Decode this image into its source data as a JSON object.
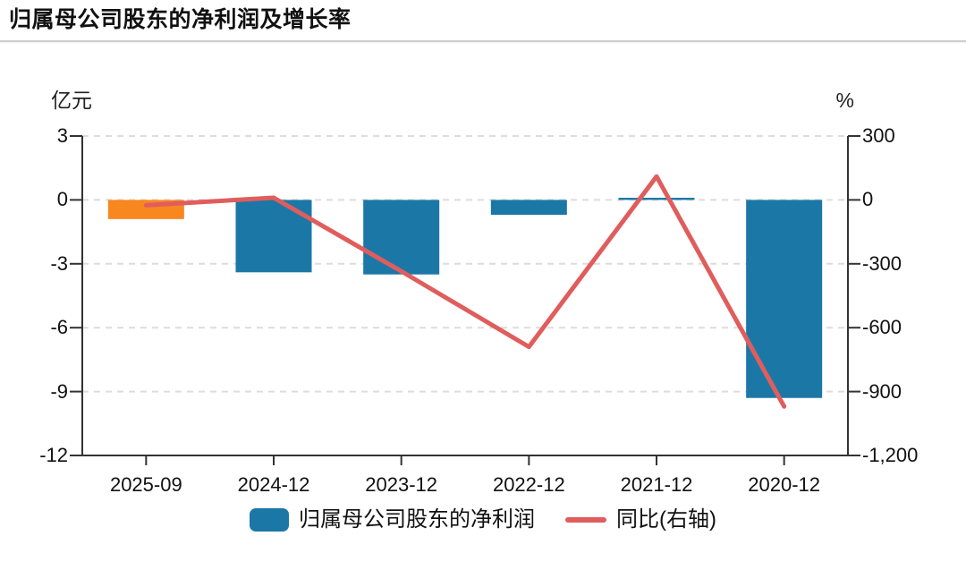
{
  "header": {
    "title": "归属母公司股东的净利润及增长率"
  },
  "axis_units": {
    "left": "亿元",
    "right": "%"
  },
  "chart_data": {
    "type": "bar",
    "title": "归属母公司股东的净利润及增长率",
    "categories": [
      "2025-09",
      "2024-12",
      "2023-12",
      "2022-12",
      "2021-12",
      "2020-12"
    ],
    "series": [
      {
        "name": "归属母公司股东的净利润",
        "type": "bar",
        "axis": "left",
        "unit": "亿元",
        "values": [
          -0.9,
          -3.4,
          -3.5,
          -0.7,
          0.1,
          -9.3
        ],
        "colors": [
          "#f8871f",
          "#1b78a6",
          "#1b78a6",
          "#1b78a6",
          "#1b78a6",
          "#1b78a6"
        ]
      },
      {
        "name": "同比(右轴)",
        "type": "line",
        "axis": "right",
        "unit": "%",
        "values": [
          -25,
          10,
          -335,
          -690,
          110,
          -970
        ],
        "color": "#e05d5d"
      }
    ],
    "left_axis": {
      "label": "亿元",
      "min": -12,
      "max": 3,
      "tick_values": [
        3,
        0,
        -3,
        -6,
        -9,
        -12
      ],
      "tick_labels": [
        "3",
        "0",
        "-3",
        "-6",
        "-9",
        "-12"
      ]
    },
    "right_axis": {
      "label": "%",
      "min": -1200,
      "max": 300,
      "tick_values": [
        300,
        0,
        -300,
        -600,
        -900,
        -1200
      ],
      "tick_labels": [
        "300",
        "0",
        "-300",
        "-600",
        "-900",
        "-1,200"
      ]
    },
    "grid": "dashed horizontal",
    "legend_position": "bottom"
  },
  "legend": {
    "items": [
      {
        "label": "归属母公司股东的净利润",
        "swatch": "bar",
        "color": "#1b78a6"
      },
      {
        "label": "同比(右轴)",
        "swatch": "line",
        "color": "#e05d5d"
      }
    ]
  },
  "colors": {
    "bar_blue": "#1b78a6",
    "bar_orange": "#f8871f",
    "line_red": "#e05d5d",
    "axis": "#333333",
    "grid": "#dcdcdc",
    "text": "#111111",
    "divider": "#cfcfcf",
    "background": "#ffffff"
  }
}
